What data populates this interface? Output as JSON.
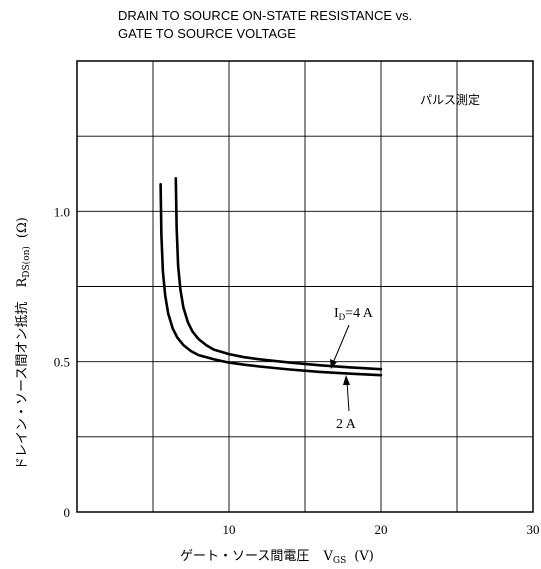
{
  "chart_data": {
    "type": "line",
    "title_lines": [
      "DRAIN TO SOURCE ON-STATE RESISTANCE vs.",
      "GATE TO SOURCE VOLTAGE"
    ],
    "xlabel": {
      "main": "ゲート・ソース間電圧",
      "symbol": "V",
      "sub": "GS",
      "unit": "(V)"
    },
    "ylabel": {
      "main": "ドレイン・ソース間オン抵抗",
      "symbol": "R",
      "sub": "DS(on)",
      "unit": "(Ω)"
    },
    "xlim": [
      0,
      30
    ],
    "ylim": [
      0,
      1.5
    ],
    "x_major_ticks": [
      0,
      5,
      10,
      15,
      20,
      25,
      30
    ],
    "x_tick_labels": [
      {
        "value": 10,
        "text": "10"
      },
      {
        "value": 20,
        "text": "20"
      },
      {
        "value": 30,
        "text": "30"
      }
    ],
    "y_major_ticks": [
      0,
      0.25,
      0.5,
      0.75,
      1.0,
      1.25,
      1.5
    ],
    "y_tick_labels": [
      {
        "value": 0,
        "text": "0"
      },
      {
        "value": 0.5,
        "text": "0.5"
      },
      {
        "value": 1.0,
        "text": "1.0"
      }
    ],
    "annotation": "パルス測定",
    "series": [
      {
        "label_symbol": "I",
        "label_sub": "D",
        "label_value": "=4 A",
        "x": [
          6.5,
          6.55,
          6.65,
          6.8,
          7.0,
          7.3,
          7.6,
          8.0,
          8.5,
          9.0,
          10.0,
          11.0,
          12.0,
          14.0,
          16.0,
          18.0,
          20.0
        ],
        "y": [
          1.11,
          0.95,
          0.82,
          0.74,
          0.68,
          0.63,
          0.6,
          0.575,
          0.555,
          0.54,
          0.525,
          0.515,
          0.508,
          0.497,
          0.488,
          0.481,
          0.475
        ]
      },
      {
        "label_value": "2 A",
        "x": [
          5.5,
          5.55,
          5.65,
          5.8,
          6.0,
          6.3,
          6.6,
          7.0,
          7.5,
          8.0,
          9.0,
          10.0,
          11.0,
          12.0,
          14.0,
          16.0,
          18.0,
          20.0
        ],
        "y": [
          1.09,
          0.92,
          0.8,
          0.72,
          0.66,
          0.61,
          0.58,
          0.555,
          0.535,
          0.522,
          0.508,
          0.497,
          0.49,
          0.484,
          0.474,
          0.466,
          0.46,
          0.455
        ]
      }
    ],
    "grid": true
  }
}
